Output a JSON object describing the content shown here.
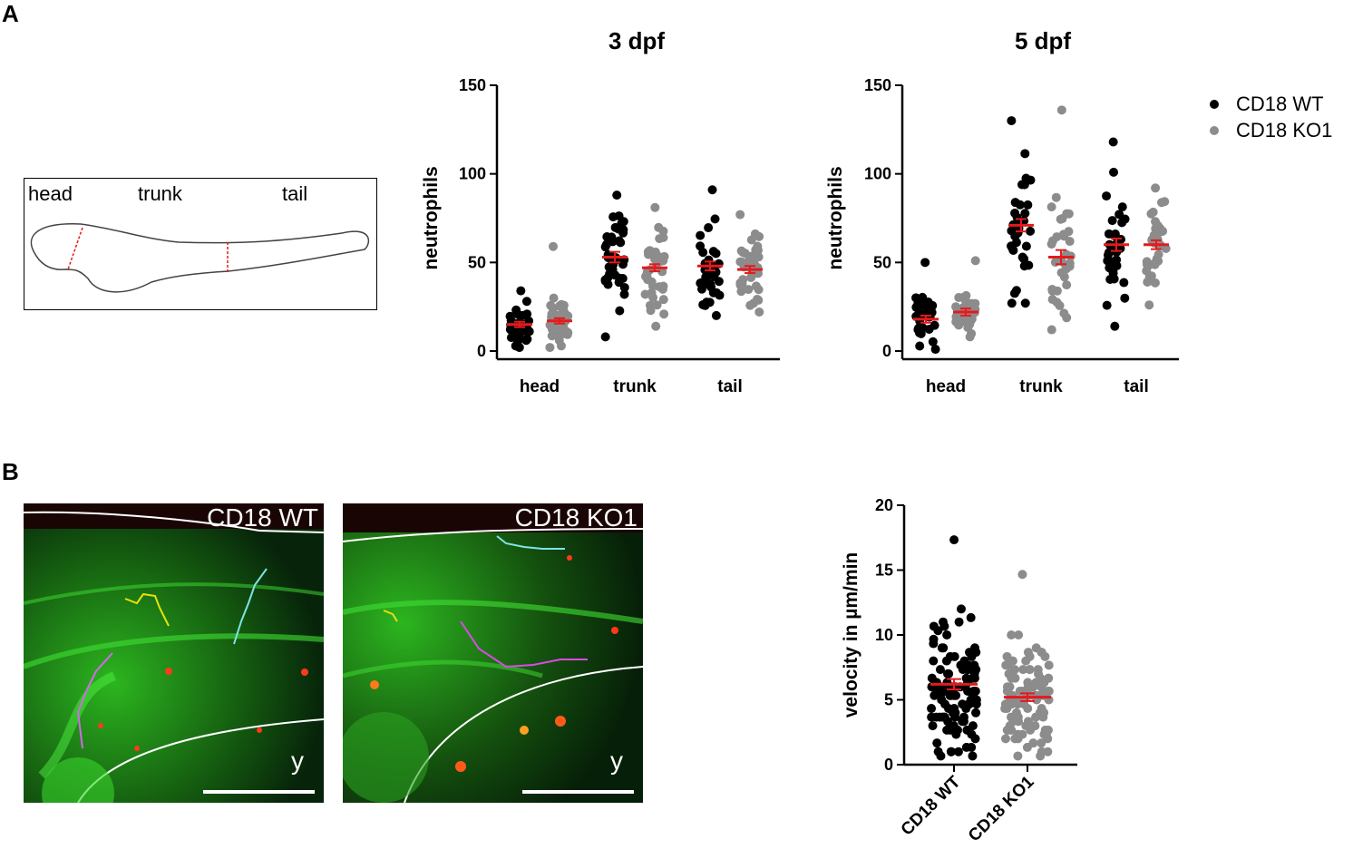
{
  "panel_labels": {
    "a": "A",
    "b": "B"
  },
  "schematic": {
    "head": "head",
    "trunk": "trunk",
    "tail": "tail"
  },
  "legend": [
    {
      "label": "CD18 WT",
      "color": "#000000"
    },
    {
      "label": "CD18 KO1",
      "color": "#8c8c8c"
    }
  ],
  "micrographs": [
    {
      "label": "CD18 WT",
      "corner": "y"
    },
    {
      "label": "CD18 KO1",
      "corner": "y"
    }
  ],
  "colors": {
    "wt": "#000000",
    "ko": "#8c8c8c",
    "mean": "#e41a1c",
    "green": "#2fd12a",
    "red": "#ff3a1a"
  },
  "chart_data": [
    {
      "type": "scatter",
      "title": "3 dpf",
      "ylabel": "neutrophils",
      "categories": [
        "head",
        "trunk",
        "tail"
      ],
      "ylim": [
        0,
        150
      ],
      "yticks": [
        0,
        50,
        100,
        150
      ],
      "series": [
        {
          "name": "CD18 WT",
          "means": [
            15,
            53,
            48
          ],
          "sem": [
            1.5,
            3,
            2.5
          ],
          "ranges": [
            [
              2,
              34
            ],
            [
              8,
              88
            ],
            [
              20,
              91
            ]
          ]
        },
        {
          "name": "CD18 KO1",
          "means": [
            17,
            47,
            46
          ],
          "sem": [
            1.5,
            2,
            2
          ],
          "ranges": [
            [
              2,
              59
            ],
            [
              14,
              81
            ],
            [
              22,
              77
            ]
          ]
        }
      ]
    },
    {
      "type": "scatter",
      "title": "5 dpf",
      "ylabel": "neutrophils",
      "categories": [
        "head",
        "trunk",
        "tail"
      ],
      "ylim": [
        0,
        150
      ],
      "yticks": [
        0,
        50,
        100,
        150
      ],
      "series": [
        {
          "name": "CD18 WT",
          "means": [
            18,
            71,
            60
          ],
          "sem": [
            2,
            3.5,
            3.5
          ],
          "ranges": [
            [
              1,
              50
            ],
            [
              27,
              130
            ],
            [
              14,
              118
            ]
          ]
        },
        {
          "name": "CD18 KO1",
          "means": [
            22,
            53,
            60
          ],
          "sem": [
            2,
            4,
            2.5
          ],
          "ranges": [
            [
              8,
              51
            ],
            [
              12,
              136
            ],
            [
              26,
              92
            ]
          ]
        }
      ]
    },
    {
      "type": "scatter",
      "ylabel": "velocity in µm/min",
      "categories": [
        "CD18 WT",
        "CD18 KO1"
      ],
      "ylim": [
        0,
        20
      ],
      "yticks": [
        0,
        5,
        10,
        15,
        20
      ],
      "series": [
        {
          "name": "CD18 WT",
          "mean": 6.2,
          "sem": 0.4,
          "range": [
            0.5,
            17.4
          ]
        },
        {
          "name": "CD18 KO1",
          "mean": 5.2,
          "sem": 0.3,
          "range": [
            0.5,
            14.5
          ]
        }
      ]
    }
  ]
}
